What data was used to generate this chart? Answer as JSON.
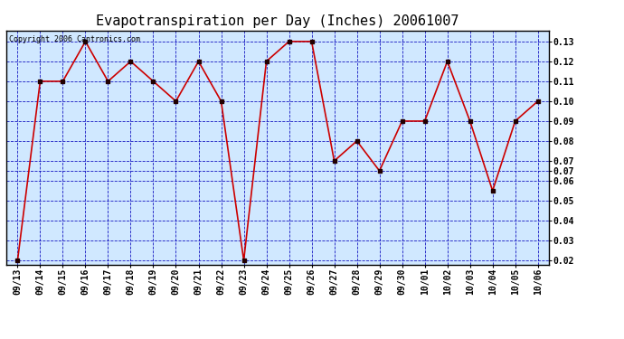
{
  "title": "Evapotranspiration per Day (Inches) 20061007",
  "copyright_text": "Copyright 2006 Cantronics.com",
  "dates": [
    "09/13",
    "09/14",
    "09/15",
    "09/16",
    "09/17",
    "09/18",
    "09/19",
    "09/20",
    "09/21",
    "09/22",
    "09/23",
    "09/24",
    "09/25",
    "09/26",
    "09/27",
    "09/28",
    "09/29",
    "09/30",
    "10/01",
    "10/02",
    "10/03",
    "10/04",
    "10/05",
    "10/06"
  ],
  "values": [
    0.02,
    0.11,
    0.11,
    0.13,
    0.11,
    0.12,
    0.11,
    0.1,
    0.12,
    0.1,
    0.02,
    0.12,
    0.13,
    0.13,
    0.07,
    0.08,
    0.065,
    0.09,
    0.09,
    0.12,
    0.09,
    0.055,
    0.09,
    0.1
  ],
  "line_color": "#cc0000",
  "marker_color": "#220000",
  "bg_color": "#d0e8ff",
  "grid_color": "#0000bb",
  "title_fontsize": 11,
  "axis_label_fontsize": 7,
  "copyright_fontsize": 6,
  "ylim_min": 0.018,
  "ylim_max": 0.1355,
  "ytick_positions": [
    0.02,
    0.03,
    0.04,
    0.05,
    0.06,
    0.065,
    0.07,
    0.08,
    0.09,
    0.1,
    0.11,
    0.12,
    0.13
  ],
  "ytick_labels": [
    "0.02",
    "0.03",
    "0.04",
    "0.05",
    "0.06",
    "0.07",
    "0.07",
    "0.08",
    "0.09",
    "0.10",
    "0.11",
    "0.12",
    "0.13"
  ]
}
